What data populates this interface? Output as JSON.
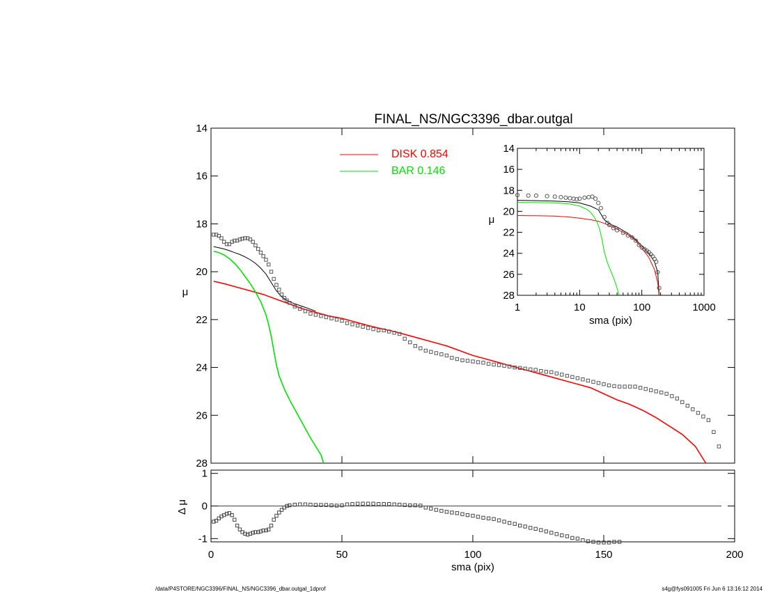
{
  "chart_data": [
    {
      "type": "scatter",
      "panel": "main",
      "title": "FINAL_NS/NGC3396_dbar.outgal",
      "xlabel": "",
      "ylabel": "μ",
      "xlim": [
        0,
        200
      ],
      "ylim": [
        28,
        14
      ],
      "y_inverted": true,
      "xticks": [
        0,
        50,
        100,
        150,
        200
      ],
      "yticks": [
        14,
        16,
        18,
        20,
        22,
        24,
        26,
        28
      ],
      "legend": {
        "placement": "top-center",
        "entries": [
          {
            "label": "DISK  0.854",
            "color": "#ff0000"
          },
          {
            "label": "BAR  0.146",
            "color": "#00e000"
          }
        ]
      },
      "series": [
        {
          "name": "data",
          "kind": "points",
          "color": "#555555",
          "x": [
            1,
            2,
            3,
            4,
            5,
            6,
            7,
            8,
            9,
            10,
            11,
            12,
            13,
            14,
            15,
            16,
            17,
            18,
            19,
            20,
            21,
            22,
            23,
            24,
            25,
            26,
            27,
            28,
            29,
            30,
            32,
            34,
            36,
            38,
            40,
            42,
            44,
            46,
            48,
            50,
            52,
            54,
            56,
            58,
            60,
            62,
            64,
            66,
            68,
            70,
            72,
            74,
            76,
            78,
            80,
            82,
            84,
            86,
            88,
            90,
            92,
            94,
            96,
            98,
            100,
            102,
            104,
            106,
            108,
            110,
            112,
            114,
            116,
            118,
            120,
            122,
            124,
            126,
            128,
            130,
            132,
            134,
            136,
            138,
            140,
            142,
            144,
            146,
            148,
            150,
            152,
            154,
            156,
            158,
            160,
            162,
            164,
            166,
            168,
            170,
            172,
            174,
            176,
            178,
            180,
            182,
            184,
            186,
            188,
            190,
            192,
            194
          ],
          "y": [
            18.45,
            18.45,
            18.5,
            18.6,
            18.75,
            18.85,
            18.85,
            18.75,
            18.7,
            18.7,
            18.65,
            18.62,
            18.6,
            18.6,
            18.65,
            18.75,
            18.9,
            19.05,
            19.2,
            19.35,
            19.5,
            19.7,
            20.0,
            20.3,
            20.55,
            20.75,
            20.95,
            21.1,
            21.2,
            21.3,
            21.45,
            21.55,
            21.65,
            21.75,
            21.8,
            21.85,
            21.9,
            21.95,
            22.0,
            22.05,
            22.15,
            22.2,
            22.25,
            22.3,
            22.35,
            22.4,
            22.45,
            22.45,
            22.5,
            22.55,
            22.6,
            22.8,
            22.95,
            23.1,
            23.2,
            23.3,
            23.35,
            23.4,
            23.45,
            23.5,
            23.6,
            23.65,
            23.7,
            23.72,
            23.75,
            23.78,
            23.8,
            23.85,
            23.88,
            23.9,
            23.93,
            23.96,
            24.0,
            24.02,
            24.05,
            24.08,
            24.1,
            24.15,
            24.18,
            24.2,
            24.25,
            24.3,
            24.35,
            24.4,
            24.45,
            24.5,
            24.55,
            24.6,
            24.65,
            24.7,
            24.75,
            24.78,
            24.8,
            24.8,
            24.8,
            24.8,
            24.85,
            24.9,
            24.95,
            25.0,
            25.05,
            25.1,
            25.2,
            25.3,
            25.45,
            25.6,
            25.75,
            25.9,
            26.05,
            26.2,
            26.7,
            27.3
          ]
        },
        {
          "name": "total",
          "kind": "line",
          "color": "#000000",
          "x": [
            1,
            3,
            5,
            7,
            9,
            11,
            13,
            15,
            17,
            19,
            21,
            23,
            25,
            27,
            29,
            31,
            35,
            40
          ],
          "y": [
            18.95,
            19.0,
            19.05,
            19.12,
            19.2,
            19.28,
            19.38,
            19.5,
            19.65,
            19.85,
            20.1,
            20.45,
            20.8,
            21.05,
            21.2,
            21.3,
            21.45,
            21.65
          ]
        },
        {
          "name": "DISK  0.854",
          "kind": "line",
          "color": "#ff0000",
          "x": [
            1,
            5,
            10,
            15,
            20,
            25,
            30,
            35,
            40,
            45,
            50,
            55,
            60,
            65,
            70,
            75,
            80,
            85,
            90,
            95,
            100,
            105,
            110,
            115,
            120,
            125,
            130,
            135,
            140,
            145,
            150,
            155,
            160,
            165,
            170,
            175,
            180,
            185,
            189
          ],
          "y": [
            20.4,
            20.5,
            20.65,
            20.8,
            20.95,
            21.15,
            21.35,
            21.55,
            21.7,
            21.85,
            21.95,
            22.1,
            22.25,
            22.38,
            22.5,
            22.65,
            22.8,
            22.95,
            23.1,
            23.3,
            23.5,
            23.65,
            23.8,
            23.95,
            24.1,
            24.25,
            24.4,
            24.55,
            24.7,
            24.85,
            25.1,
            25.35,
            25.55,
            25.8,
            26.1,
            26.45,
            26.8,
            27.3,
            28.0
          ]
        },
        {
          "name": "BAR  0.146",
          "kind": "line",
          "color": "#00e000",
          "x": [
            1,
            3,
            5,
            7,
            9,
            11,
            13,
            15,
            17,
            19,
            21,
            22,
            23,
            24,
            25,
            26,
            28,
            30,
            32,
            34,
            36,
            38,
            40,
            42,
            43
          ],
          "y": [
            19.15,
            19.2,
            19.3,
            19.45,
            19.65,
            19.9,
            20.2,
            20.5,
            20.85,
            21.25,
            21.8,
            22.2,
            22.7,
            23.3,
            23.9,
            24.35,
            24.9,
            25.35,
            25.75,
            26.15,
            26.55,
            26.95,
            27.3,
            27.65,
            28.0
          ]
        }
      ]
    },
    {
      "type": "scatter",
      "panel": "residual",
      "xlabel": "sma (pix)",
      "ylabel": "Δ μ",
      "xlim": [
        0,
        200
      ],
      "ylim": [
        -1.1,
        1.1
      ],
      "xticks": [
        0,
        50,
        100,
        150,
        200
      ],
      "yticks": [
        -1,
        0,
        1
      ],
      "series": [
        {
          "name": "residual",
          "kind": "points",
          "color": "#444444",
          "x": [
            1,
            2,
            3,
            4,
            5,
            6,
            7,
            8,
            9,
            10,
            11,
            12,
            13,
            14,
            15,
            16,
            17,
            18,
            19,
            20,
            21,
            22,
            23,
            24,
            25,
            26,
            27,
            28,
            29,
            30,
            32,
            34,
            36,
            38,
            40,
            42,
            44,
            46,
            48,
            50,
            52,
            54,
            56,
            58,
            60,
            62,
            64,
            66,
            68,
            70,
            72,
            74,
            76,
            78,
            80,
            82,
            84,
            86,
            88,
            90,
            92,
            94,
            96,
            98,
            100,
            102,
            104,
            106,
            108,
            110,
            112,
            114,
            116,
            118,
            120,
            122,
            124,
            126,
            128,
            130,
            132,
            134,
            136,
            138,
            140,
            142,
            144,
            146,
            148,
            150,
            152,
            154,
            156
          ],
          "y": [
            -0.48,
            -0.45,
            -0.38,
            -0.32,
            -0.28,
            -0.24,
            -0.22,
            -0.28,
            -0.42,
            -0.6,
            -0.72,
            -0.8,
            -0.85,
            -0.88,
            -0.85,
            -0.82,
            -0.8,
            -0.8,
            -0.78,
            -0.75,
            -0.75,
            -0.72,
            -0.6,
            -0.42,
            -0.3,
            -0.2,
            -0.12,
            -0.05,
            0.0,
            0.02,
            0.04,
            0.05,
            0.05,
            0.04,
            0.03,
            0.03,
            0.03,
            0.02,
            0.01,
            0.02,
            0.05,
            0.06,
            0.07,
            0.07,
            0.07,
            0.07,
            0.06,
            0.06,
            0.06,
            0.05,
            0.04,
            0.03,
            0.02,
            0.02,
            0.01,
            -0.05,
            -0.08,
            -0.12,
            -0.15,
            -0.18,
            -0.2,
            -0.22,
            -0.25,
            -0.28,
            -0.3,
            -0.33,
            -0.36,
            -0.38,
            -0.4,
            -0.44,
            -0.48,
            -0.52,
            -0.55,
            -0.6,
            -0.63,
            -0.67,
            -0.7,
            -0.74,
            -0.78,
            -0.82,
            -0.86,
            -0.9,
            -0.93,
            -0.98,
            -1.0,
            -1.05,
            -1.08,
            -1.1,
            -1.12,
            -1.12,
            -1.12,
            -1.1,
            -1.1
          ]
        },
        {
          "name": "zero",
          "kind": "line",
          "color": "#000000",
          "x": [
            0,
            195
          ],
          "y": [
            0,
            0
          ]
        }
      ]
    },
    {
      "type": "scatter",
      "panel": "inset",
      "xlabel": "sma (pix)",
      "ylabel": "μ",
      "xlim": [
        1,
        1000
      ],
      "x_scale": "log",
      "ylim": [
        28,
        14
      ],
      "y_inverted": true,
      "xticks": [
        1,
        10,
        100,
        1000
      ],
      "yticks": [
        14,
        16,
        18,
        20,
        22,
        24,
        26,
        28
      ],
      "series": [
        {
          "name": "data",
          "kind": "points",
          "color": "#555555",
          "x": [
            1,
            1.5,
            2,
            3,
            4,
            5,
            6,
            7,
            8,
            9,
            10,
            12,
            14,
            16,
            18,
            20,
            22,
            25,
            28,
            30,
            35,
            40,
            50,
            60,
            70,
            80,
            90,
            100,
            110,
            120,
            130,
            140,
            150,
            160,
            170,
            180,
            190
          ],
          "y": [
            18.45,
            18.5,
            18.5,
            18.55,
            18.6,
            18.65,
            18.7,
            18.75,
            18.8,
            18.85,
            18.8,
            18.7,
            18.65,
            18.6,
            18.8,
            19.2,
            19.7,
            20.55,
            21.1,
            21.3,
            21.6,
            21.8,
            22.05,
            22.3,
            22.5,
            22.8,
            23.2,
            23.45,
            23.6,
            23.75,
            23.9,
            24.1,
            24.3,
            24.55,
            24.8,
            25.8,
            27.3
          ]
        },
        {
          "name": "total",
          "kind": "line",
          "color": "#000000",
          "x": [
            1,
            2,
            4,
            7,
            10,
            15,
            20,
            25,
            30,
            40,
            60,
            80,
            100,
            130,
            160,
            180,
            190
          ],
          "y": [
            18.95,
            18.98,
            19.03,
            19.1,
            19.2,
            19.5,
            19.85,
            20.8,
            21.2,
            21.5,
            22.1,
            22.7,
            23.3,
            24.0,
            24.8,
            25.8,
            28.0
          ]
        },
        {
          "name": "disk",
          "kind": "line",
          "color": "#ff0000",
          "x": [
            1,
            2,
            4,
            7,
            10,
            15,
            20,
            25,
            30,
            40,
            60,
            80,
            100,
            130,
            160,
            180,
            189
          ],
          "y": [
            20.4,
            20.42,
            20.45,
            20.55,
            20.65,
            20.8,
            20.95,
            21.15,
            21.35,
            21.7,
            22.25,
            22.8,
            23.5,
            24.4,
            25.55,
            26.8,
            28.0
          ]
        },
        {
          "name": "bar",
          "kind": "line",
          "color": "#00e000",
          "x": [
            1,
            2,
            4,
            7,
            10,
            13,
            15,
            17,
            19,
            21,
            23,
            25,
            28,
            32,
            36,
            40,
            43
          ],
          "y": [
            19.15,
            19.17,
            19.2,
            19.3,
            19.5,
            19.8,
            20.1,
            20.5,
            21.0,
            21.7,
            22.7,
            23.9,
            24.9,
            25.75,
            26.5,
            27.3,
            28.0
          ]
        }
      ]
    }
  ],
  "footer": {
    "left": "/data/P4STORE/NGC3396/FINAL_NS/NGC3396_dbar.outgal_1dprof",
    "right": "s4g@fys091005  Fri Jun  6 13:16:12 2014"
  }
}
